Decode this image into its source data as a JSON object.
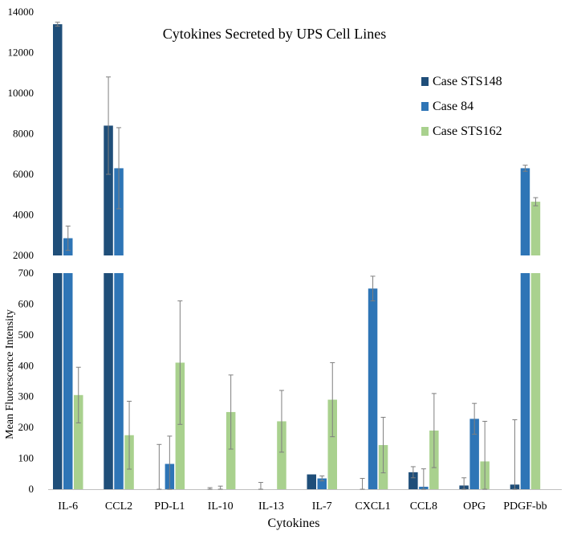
{
  "chart_data": {
    "type": "bar",
    "title": "Cytokines Secreted by UPS Cell Lines",
    "xlabel": "Cytokines",
    "ylabel": "Mean Fluorescence Intensity",
    "broken_axis": true,
    "upper_panel": {
      "ylim": [
        2000,
        14000
      ],
      "ticks": [
        2000,
        4000,
        6000,
        8000,
        10000,
        12000,
        14000
      ]
    },
    "lower_panel": {
      "ylim": [
        0,
        700
      ],
      "ticks": [
        0,
        100,
        200,
        300,
        400,
        500,
        600,
        700
      ]
    },
    "legend_position": "top-right",
    "categories": [
      "IL-6",
      "CCL2",
      "PD-L1",
      "IL-10",
      "IL-13",
      "IL-7",
      "CXCL1",
      "CCL8",
      "OPG",
      "PDGF-bb"
    ],
    "series": [
      {
        "name": "Case STS148",
        "color": "#1f4e79",
        "values": [
          13400,
          8400,
          0,
          0,
          0,
          48,
          0,
          55,
          12,
          15
        ],
        "errors": [
          100,
          2400,
          145,
          5,
          22,
          0,
          35,
          18,
          25,
          210
        ]
      },
      {
        "name": "Case 84",
        "color": "#2e75b6",
        "values": [
          2850,
          6300,
          82,
          0,
          0,
          35,
          650,
          8,
          228,
          6300
        ],
        "errors": [
          600,
          2000,
          90,
          10,
          0,
          8,
          40,
          58,
          50,
          150
        ]
      },
      {
        "name": "Case STS162",
        "color": "#a9d18e",
        "values": [
          305,
          175,
          410,
          250,
          220,
          290,
          143,
          190,
          90,
          4650
        ],
        "errors": [
          90,
          110,
          200,
          120,
          100,
          120,
          90,
          120,
          130,
          200
        ]
      }
    ]
  }
}
